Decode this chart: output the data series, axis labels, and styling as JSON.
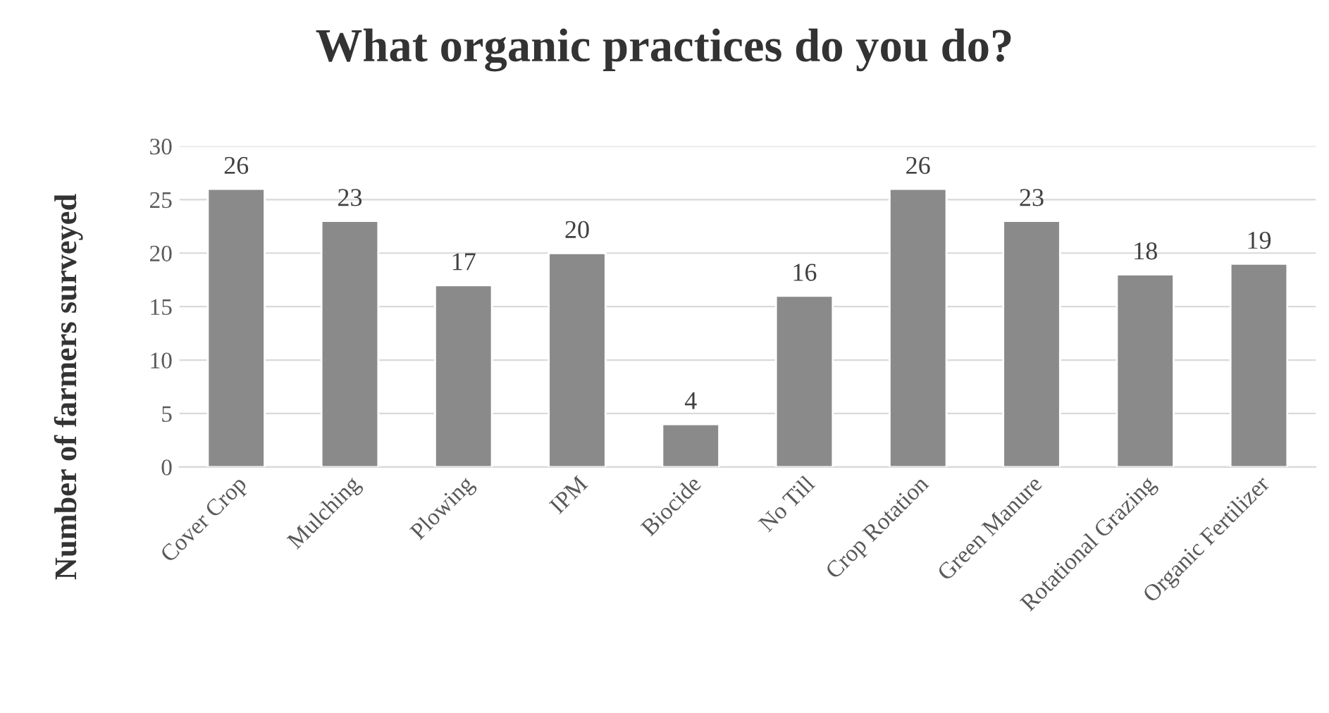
{
  "chart_data": {
    "type": "bar",
    "title": "What organic practices do you do?",
    "ylabel": "Number of farmers surveyed",
    "categories": [
      "Cover Crop",
      "Mulching",
      "Plowing",
      "IPM",
      "Biocide",
      "No Till",
      "Crop Rotation",
      "Green Manure",
      "Rotational Grazing",
      "Organic Fertilizer"
    ],
    "values": [
      26,
      23,
      17,
      20,
      4,
      16,
      26,
      23,
      18,
      19
    ],
    "color": "#8a8a8a",
    "ylim": [
      0,
      30
    ],
    "yticks": [
      0,
      5,
      10,
      15,
      20,
      25,
      30
    ],
    "grid": "y",
    "data_labels": true,
    "legend": false
  }
}
